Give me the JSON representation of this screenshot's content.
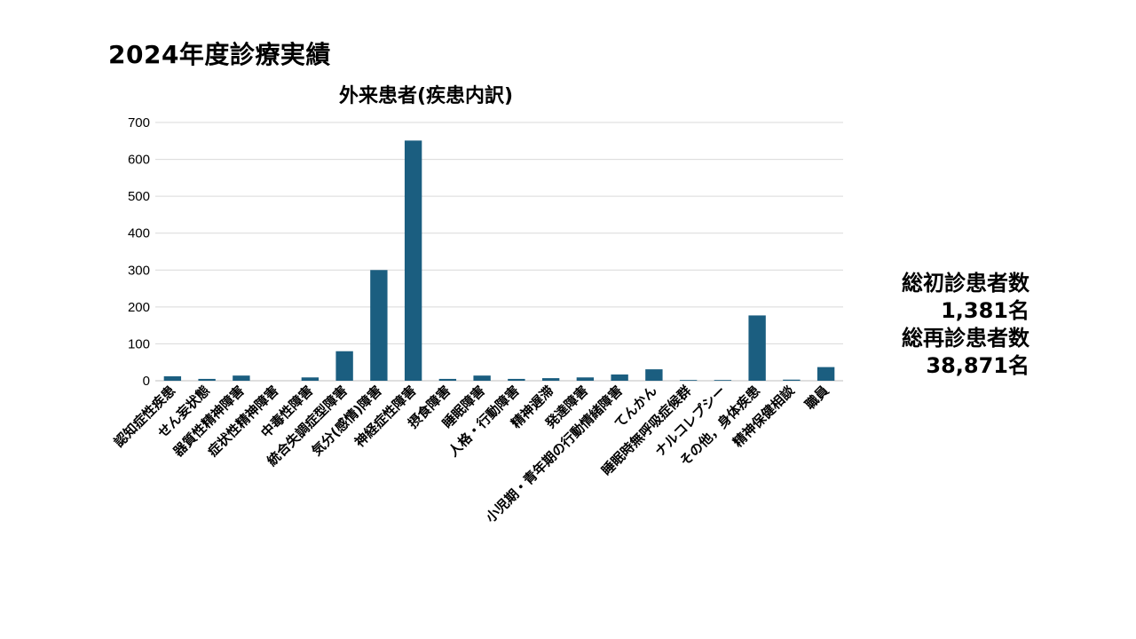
{
  "page": {
    "title": "2024年度診療実績"
  },
  "stats": {
    "initial_label": "総初診患者数",
    "initial_value": "1,381名",
    "return_label": "総再診患者数",
    "return_value": "38,871名"
  },
  "chart_data": {
    "type": "bar",
    "title": "外来患者(疾患内訳)",
    "xlabel": "",
    "ylabel": "",
    "ylim": [
      0,
      700
    ],
    "yticks": [
      0,
      100,
      200,
      300,
      400,
      500,
      600,
      700
    ],
    "grid": true,
    "legend": "none",
    "color": "#1b5e80",
    "categories": [
      "認知症性疾患",
      "せん妄状態",
      "器質性精神障害",
      "症状性精神障害",
      "中毒性障害",
      "統合失調症型障害",
      "気分(感情)障害",
      "神経症性障害",
      "摂食障害",
      "睡眠障害",
      "人格・行動障害",
      "精神遅滞",
      "発達障害",
      "小児期・青年期の行動情緒障害",
      "てんかん",
      "睡眠時無呼吸症候群",
      "ナルコレプシー",
      "その他，身体疾患",
      "精神保健相談",
      "職員"
    ],
    "values": [
      12,
      5,
      14,
      0,
      9,
      80,
      300,
      651,
      5,
      14,
      5,
      7,
      9,
      17,
      31,
      2,
      2,
      177,
      3,
      37
    ]
  }
}
